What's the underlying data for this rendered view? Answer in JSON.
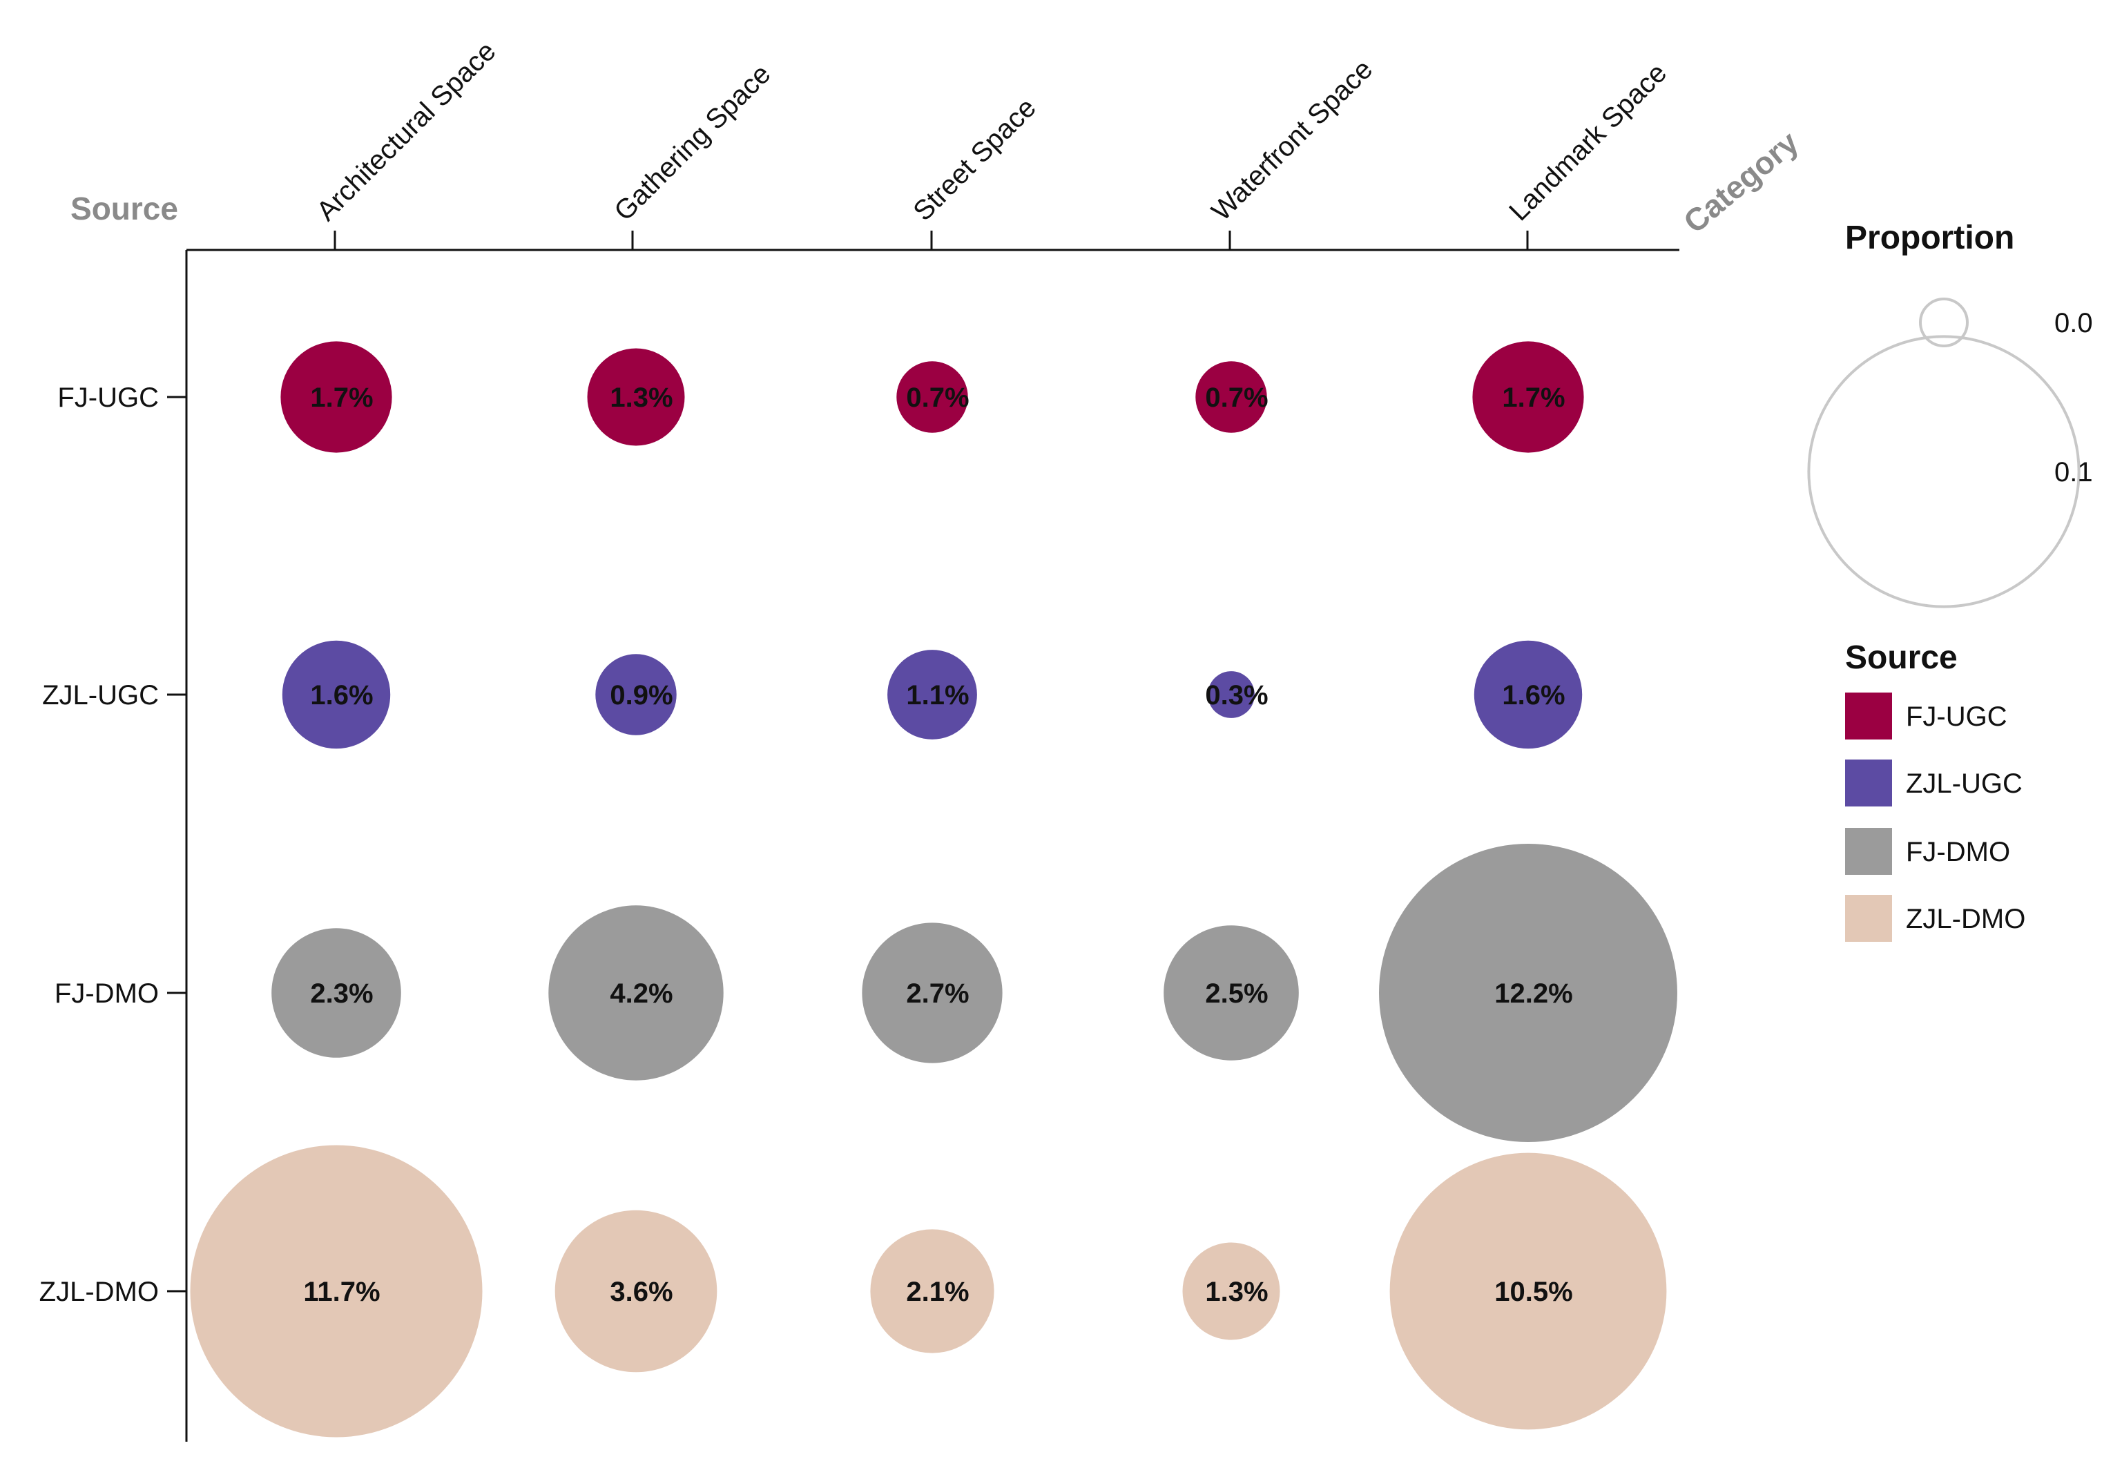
{
  "chart_data": {
    "type": "bubble-matrix",
    "x_axis_title": "Category",
    "y_axis_title": "Source",
    "categories": [
      "Architectural Space",
      "Gathering Space",
      "Street Space",
      "Waterfront Space",
      "Landmark Space"
    ],
    "sources": [
      "FJ-UGC",
      "ZJL-UGC",
      "FJ-DMO",
      "ZJL-DMO"
    ],
    "series": [
      {
        "name": "FJ-UGC",
        "color": "#9b0042",
        "values": [
          0.017,
          0.013,
          0.007,
          0.007,
          0.017
        ],
        "labels": [
          "1.7%",
          "1.3%",
          "0.7%",
          "0.7%",
          "1.7%"
        ]
      },
      {
        "name": "ZJL-UGC",
        "color": "#5c4ba3",
        "values": [
          0.016,
          0.009,
          0.011,
          0.003,
          0.016
        ],
        "labels": [
          "1.6%",
          "0.9%",
          "1.1%",
          "0.3%",
          "1.6%"
        ]
      },
      {
        "name": "FJ-DMO",
        "color": "#9b9b9b",
        "values": [
          0.023,
          0.042,
          0.027,
          0.025,
          0.122
        ],
        "labels": [
          "2.3%",
          "4.2%",
          "2.7%",
          "2.5%",
          "12.2%"
        ]
      },
      {
        "name": "ZJL-DMO",
        "color": "#e3c8b6",
        "values": [
          0.117,
          0.036,
          0.021,
          0.013,
          0.105
        ],
        "labels": [
          "11.7%",
          "3.6%",
          "2.1%",
          "1.3%",
          "10.5%"
        ]
      }
    ],
    "size_legend": {
      "title": "Proportion",
      "values": [
        0.0,
        0.1
      ],
      "labels": [
        "0.0",
        "0.1"
      ]
    },
    "color_legend": {
      "title": "Source",
      "entries": [
        "FJ-UGC",
        "ZJL-UGC",
        "FJ-DMO",
        "ZJL-DMO"
      ]
    }
  }
}
